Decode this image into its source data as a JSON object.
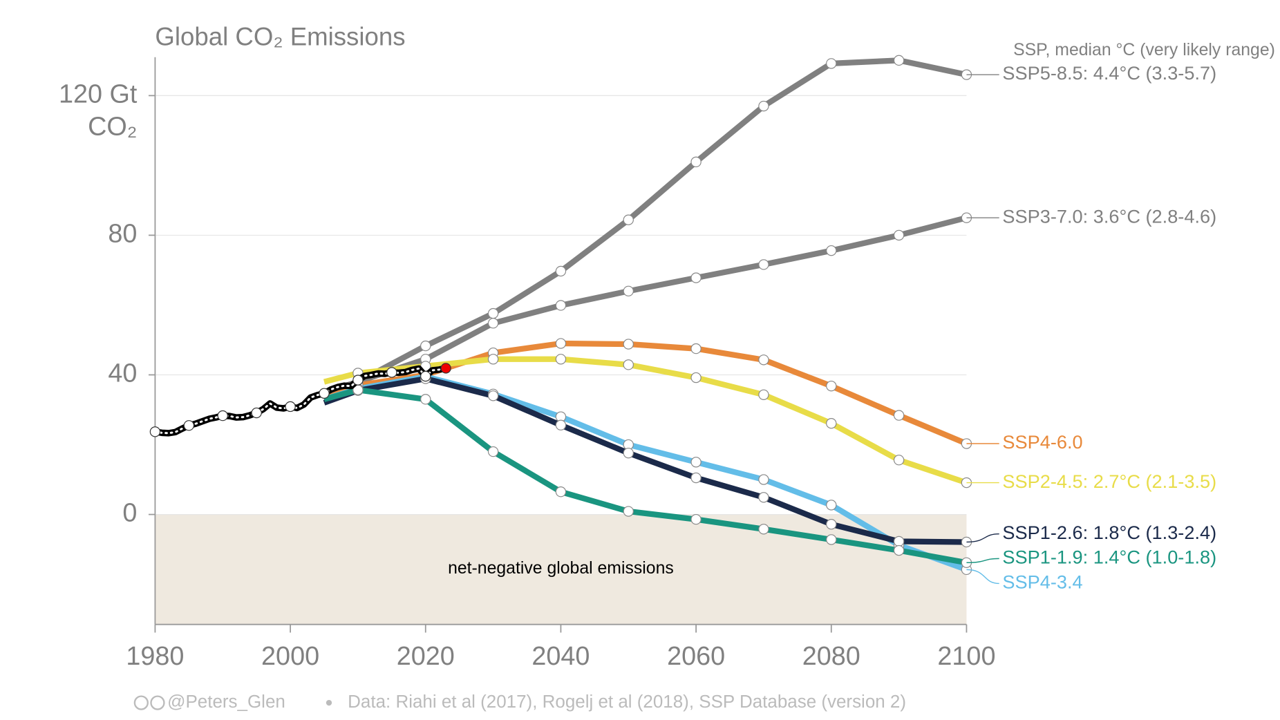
{
  "chart_data": {
    "type": "line",
    "title": "Global CO₂ Emissions",
    "y_unit": "CO₂",
    "legend_title": "SSP, median °C (very likely range)",
    "annotation": "net-negative global emissions",
    "credit": "@Peters_Glen",
    "source": "Data: Riahi et al (2017), Rogelj et al (2018), SSP Database (version 2)",
    "xlim": [
      1980,
      2100
    ],
    "xticks": [
      1980,
      2000,
      2020,
      2040,
      2060,
      2080,
      2100
    ],
    "ylim": [
      -31.5,
      131
    ],
    "yticks": [
      0,
      40,
      80,
      {
        "value": 120,
        "label": "120 Gt"
      }
    ],
    "grid": true,
    "x": [
      2005,
      2010,
      2020,
      2030,
      2040,
      2050,
      2060,
      2070,
      2080,
      2090,
      2100
    ],
    "series": [
      {
        "name": "SSP5-8.5: 4.4°C (3.3-5.7)",
        "color": "#808080",
        "values": [
          35,
          38,
          48.3,
          57.6,
          69.7,
          84.4,
          101,
          117,
          129.2,
          130.1,
          126
        ]
      },
      {
        "name": "SSP3-7.0: 3.6°C (2.8-4.6)",
        "color": "#808080",
        "values": [
          34,
          38,
          44.5,
          54.8,
          59.9,
          64,
          67.8,
          71.6,
          75.6,
          80,
          85
        ]
      },
      {
        "name": "SSP4-6.0",
        "color": "#e8893a",
        "values": [
          33,
          37,
          40,
          46.3,
          49,
          48.8,
          47.5,
          44.3,
          36.8,
          28.4,
          20.3
        ]
      },
      {
        "name": "SSP2-4.5: 2.7°C (2.1-3.5)",
        "color": "#e8dc48",
        "values": [
          38,
          40.5,
          42.5,
          44.5,
          44.5,
          42.9,
          39.2,
          34.3,
          26.1,
          15.6,
          9.1
        ]
      },
      {
        "name": "SSP4-3.4",
        "color": "#63bde8",
        "values": [
          33,
          36,
          39.5,
          34.5,
          28,
          20,
          15,
          10,
          2.7,
          -8.8,
          -15.8
        ]
      },
      {
        "name": "SSP1-2.6: 1.8°C (1.3-2.4)",
        "color": "#1b2a4a",
        "values": [
          32,
          35.5,
          38.9,
          34,
          25.6,
          17.6,
          10.5,
          4.9,
          -2.8,
          -7.7,
          -7.9
        ]
      },
      {
        "name": "SSP1-1.9: 1.4°C (1.0-1.8)",
        "color": "#1a9580",
        "values": [
          33,
          35.7,
          33,
          18,
          6.5,
          0.9,
          -1.4,
          -4.2,
          -7.2,
          -10.3,
          -13.8
        ]
      }
    ],
    "historical": {
      "color": "#000000",
      "x": [
        1980,
        1981,
        1982,
        1983,
        1984,
        1985,
        1986,
        1987,
        1988,
        1989,
        1990,
        1991,
        1992,
        1993,
        1994,
        1995,
        1996,
        1997,
        1998,
        1999,
        2000,
        2001,
        2002,
        2003,
        2004,
        2005,
        2006,
        2007,
        2008,
        2009,
        2010,
        2011,
        2012,
        2013,
        2014,
        2015,
        2016,
        2017,
        2018,
        2019,
        2020,
        2021,
        2022,
        2023
      ],
      "values": [
        23.7,
        23.4,
        23.3,
        23.6,
        24.6,
        25.5,
        26.0,
        26.7,
        27.4,
        27.8,
        28.3,
        28.2,
        27.8,
        27.9,
        28.4,
        29.1,
        30.2,
        31.8,
        30.6,
        30.4,
        30.9,
        30.5,
        31.5,
        33.5,
        34.2,
        34.7,
        35.8,
        36.5,
        36.9,
        36.8,
        38.5,
        39.7,
        40.0,
        40.4,
        40.3,
        40.7,
        40.6,
        40.8,
        41.4,
        41.8,
        39.6,
        41.3,
        41.5,
        41.9
      ]
    }
  }
}
